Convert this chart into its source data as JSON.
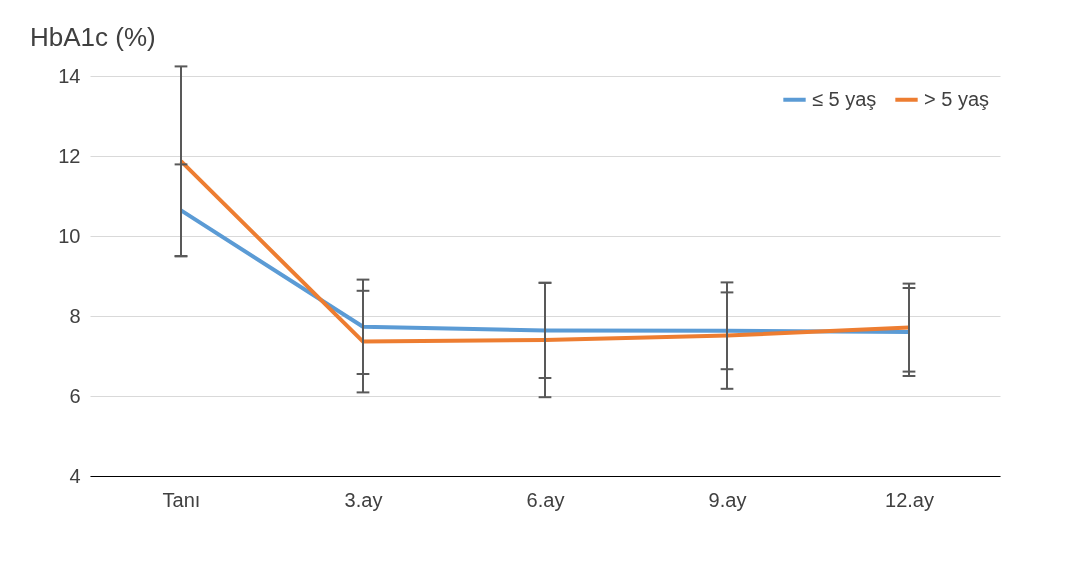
{
  "chart_data": {
    "type": "line",
    "title": "HbA1c (%)",
    "categories": [
      "Tanı",
      "3.ay",
      "6.ay",
      "9.ay",
      "12.ay"
    ],
    "series": [
      {
        "name": "≤ 5 yaş",
        "color": "#5b9bd5",
        "values": [
          10.64,
          7.73,
          7.64,
          7.63,
          7.6
        ],
        "errors": [
          1.15,
          1.18,
          1.19,
          0.96,
          1.1
        ]
      },
      {
        "name": "> 5 yaş",
        "color": "#ed7d31",
        "values": [
          11.87,
          7.36,
          7.4,
          7.51,
          7.71
        ],
        "errors": [
          2.37,
          1.27,
          1.43,
          1.33,
          1.1
        ]
      }
    ],
    "ylim": [
      4,
      14
    ],
    "yticks": [
      4,
      6,
      8,
      10,
      12,
      14
    ],
    "grid": "y",
    "legend": "top right",
    "marker": "none",
    "line_style": "solid"
  }
}
